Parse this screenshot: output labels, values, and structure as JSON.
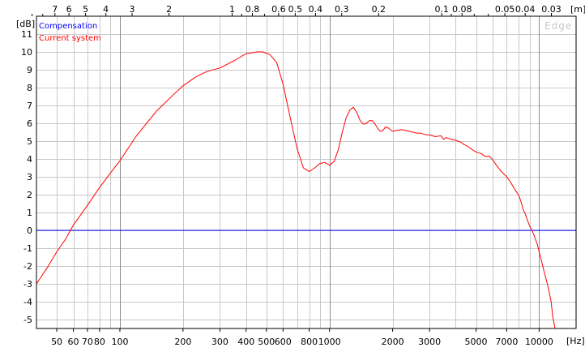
{
  "chart_data": {
    "type": "line",
    "title": "",
    "watermark": "Edge",
    "ylabel": "[dB]",
    "xlabel": "[Hz]",
    "top_axis_unit": "[m]",
    "x_scale": "log",
    "xlim": [
      40,
      15000
    ],
    "ylim": [
      -5.5,
      12
    ],
    "grid": true,
    "legend_position": "top-left",
    "x_tick_labels": [
      {
        "value": 50,
        "label": "50"
      },
      {
        "value": 60,
        "label": "60"
      },
      {
        "value": 70,
        "label": "70"
      },
      {
        "value": 80,
        "label": "80"
      },
      {
        "value": 100,
        "label": "100"
      },
      {
        "value": 200,
        "label": "200"
      },
      {
        "value": 300,
        "label": "300"
      },
      {
        "value": 400,
        "label": "400"
      },
      {
        "value": 500,
        "label": "500"
      },
      {
        "value": 600,
        "label": "600"
      },
      {
        "value": 800,
        "label": "800"
      },
      {
        "value": 1000,
        "label": "1000"
      },
      {
        "value": 2000,
        "label": "2000"
      },
      {
        "value": 3000,
        "label": "3000"
      },
      {
        "value": 5000,
        "label": "5000"
      },
      {
        "value": 7000,
        "label": "7000"
      },
      {
        "value": 10000,
        "label": "10000"
      }
    ],
    "x_major_grid": [
      100,
      1000,
      10000
    ],
    "x_minor_grid": [
      50,
      60,
      70,
      80,
      90,
      200,
      300,
      400,
      500,
      600,
      700,
      800,
      900,
      2000,
      3000,
      4000,
      5000,
      6000,
      7000,
      8000,
      9000
    ],
    "top_tick_labels": [
      {
        "value": 7,
        "label": "7"
      },
      {
        "value": 6,
        "label": "6"
      },
      {
        "value": 5,
        "label": "5"
      },
      {
        "value": 4,
        "label": "4"
      },
      {
        "value": 3,
        "label": "3"
      },
      {
        "value": 2,
        "label": "2"
      },
      {
        "value": 1,
        "label": "1"
      },
      {
        "value": 0.8,
        "label": "0.8"
      },
      {
        "value": 0.6,
        "label": "0.6"
      },
      {
        "value": 0.5,
        "label": "0.5"
      },
      {
        "value": 0.4,
        "label": "0.4"
      },
      {
        "value": 0.3,
        "label": "0.3"
      },
      {
        "value": 0.2,
        "label": "0.2"
      },
      {
        "value": 0.1,
        "label": "0.1"
      },
      {
        "value": 0.08,
        "label": "0.08"
      },
      {
        "value": 0.05,
        "label": "0.05"
      },
      {
        "value": 0.04,
        "label": "0.04"
      },
      {
        "value": 0.03,
        "label": "0.03"
      }
    ],
    "top_minor_ticks": [
      9,
      8,
      0.9,
      0.7,
      0.09,
      0.07,
      0.06,
      0.02
    ],
    "y_ticks": [
      11,
      10,
      9,
      8,
      7,
      6,
      5,
      4,
      3,
      2,
      1,
      0,
      -1,
      -2,
      -3,
      -4,
      -5
    ],
    "series": [
      {
        "name": "Compensation",
        "color": "#0000ff",
        "x": [
          40,
          15000
        ],
        "y": [
          0,
          0
        ]
      },
      {
        "name": "Current system",
        "color": "#ff0000",
        "x": [
          40,
          45,
          50,
          55,
          60,
          70,
          80,
          90,
          100,
          120,
          150,
          180,
          200,
          230,
          260,
          300,
          350,
          400,
          450,
          480,
          520,
          560,
          600,
          650,
          700,
          750,
          800,
          850,
          900,
          950,
          1000,
          1050,
          1100,
          1150,
          1200,
          1250,
          1300,
          1350,
          1400,
          1450,
          1500,
          1550,
          1600,
          1650,
          1700,
          1750,
          1800,
          1850,
          1900,
          2000,
          2100,
          2200,
          2300,
          2400,
          2500,
          2600,
          2700,
          2800,
          2900,
          3000,
          3100,
          3200,
          3400,
          3500,
          3600,
          3800,
          4000,
          4200,
          4400,
          4500,
          4700,
          4900,
          5100,
          5300,
          5500,
          5800,
          6000,
          6300,
          6600,
          7000,
          7300,
          7600,
          8000,
          8200,
          8400,
          8600,
          8800,
          9000,
          9200,
          9400,
          9600,
          9800,
          10000,
          10300,
          10600,
          11000,
          11400,
          11600,
          11900
        ],
        "y": [
          -3.0,
          -2.1,
          -1.2,
          -0.5,
          0.3,
          1.4,
          2.4,
          3.2,
          3.9,
          5.3,
          6.7,
          7.6,
          8.1,
          8.6,
          8.9,
          9.1,
          9.5,
          9.9,
          10.0,
          10.0,
          9.85,
          9.4,
          8.2,
          6.3,
          4.6,
          3.5,
          3.3,
          3.5,
          3.75,
          3.8,
          3.65,
          3.85,
          4.5,
          5.5,
          6.3,
          6.75,
          6.9,
          6.6,
          6.15,
          5.95,
          6.0,
          6.15,
          6.15,
          5.95,
          5.7,
          5.55,
          5.6,
          5.8,
          5.75,
          5.55,
          5.6,
          5.65,
          5.6,
          5.55,
          5.5,
          5.45,
          5.45,
          5.4,
          5.35,
          5.35,
          5.3,
          5.25,
          5.3,
          5.1,
          5.2,
          5.1,
          5.05,
          4.95,
          4.8,
          4.75,
          4.6,
          4.45,
          4.35,
          4.3,
          4.15,
          4.15,
          3.95,
          3.6,
          3.3,
          3.0,
          2.7,
          2.35,
          1.95,
          1.6,
          1.15,
          0.9,
          0.55,
          0.25,
          0.05,
          -0.2,
          -0.5,
          -0.8,
          -1.2,
          -1.8,
          -2.4,
          -3.1,
          -4.0,
          -4.8,
          -5.5
        ]
      }
    ]
  }
}
